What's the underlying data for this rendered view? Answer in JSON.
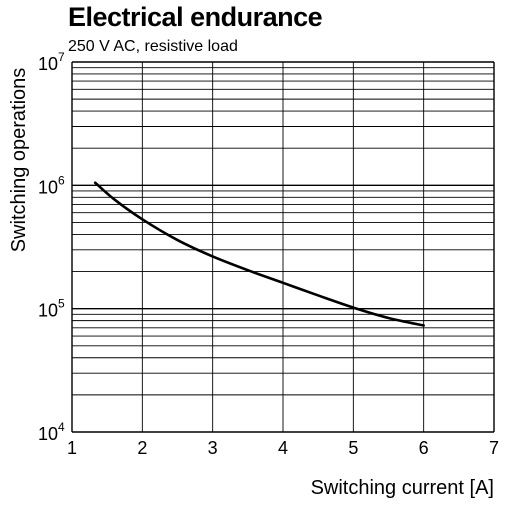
{
  "chart_data": {
    "type": "line",
    "title": "Electrical endurance",
    "subtitle": "250 V AC, resistive load",
    "xlabel": "Switching current [A]",
    "ylabel": "Switching operations",
    "xlim": [
      1,
      7
    ],
    "ylim": [
      10000,
      10000000
    ],
    "yscale": "log",
    "grid": true,
    "x_ticks": [
      "1",
      "2",
      "3",
      "4",
      "5",
      "6",
      "7"
    ],
    "y_ticks": [
      {
        "base": "10",
        "exp": "4",
        "value": 10000
      },
      {
        "base": "10",
        "exp": "5",
        "value": 100000
      },
      {
        "base": "10",
        "exp": "6",
        "value": 1000000
      },
      {
        "base": "10",
        "exp": "7",
        "value": 10000000
      }
    ],
    "series": [
      {
        "x": [
          1.33,
          1.6,
          2.0,
          2.5,
          3.0,
          3.5,
          4.0,
          4.5,
          5.0,
          5.5,
          6.0
        ],
        "y": [
          1050000,
          770000,
          530000,
          360000,
          265000,
          205000,
          162000,
          128000,
          102000,
          84000,
          73000
        ]
      }
    ]
  }
}
